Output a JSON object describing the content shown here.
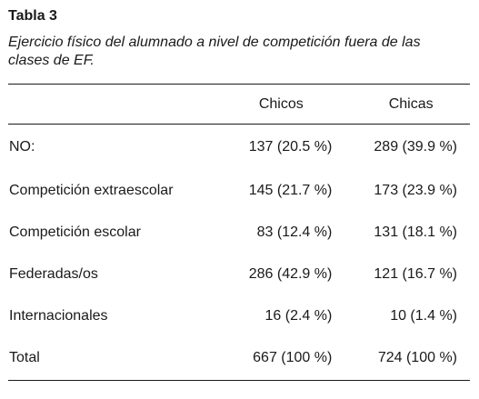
{
  "table": {
    "title": "Tabla 3",
    "caption": "Ejercicio físico del alumnado a nivel de competición fuera de las clases de EF.",
    "headers": [
      "",
      "Chicos",
      "Chicas"
    ],
    "rows": [
      {
        "label": "NO:",
        "chicos": "137 (20.5 %)",
        "chicas": "289 (39.9 %)"
      },
      {
        "label": "Competición extraescolar",
        "chicos": "145 (21.7 %)",
        "chicas": "173 (23.9 %)"
      },
      {
        "label": "Competición escolar",
        "chicos": "83 (12.4 %)",
        "chicas": "131 (18.1 %)"
      },
      {
        "label": "Federadas/os",
        "chicos": "286 (42.9 %)",
        "chicas": "121 (16.7 %)"
      },
      {
        "label": "Internacionales",
        "chicos": "16 (2.4 %)",
        "chicas": "10 (1.4 %)"
      },
      {
        "label": "Total",
        "chicos": "667 (100 %)",
        "chicas": "724 (100 %)"
      }
    ]
  }
}
